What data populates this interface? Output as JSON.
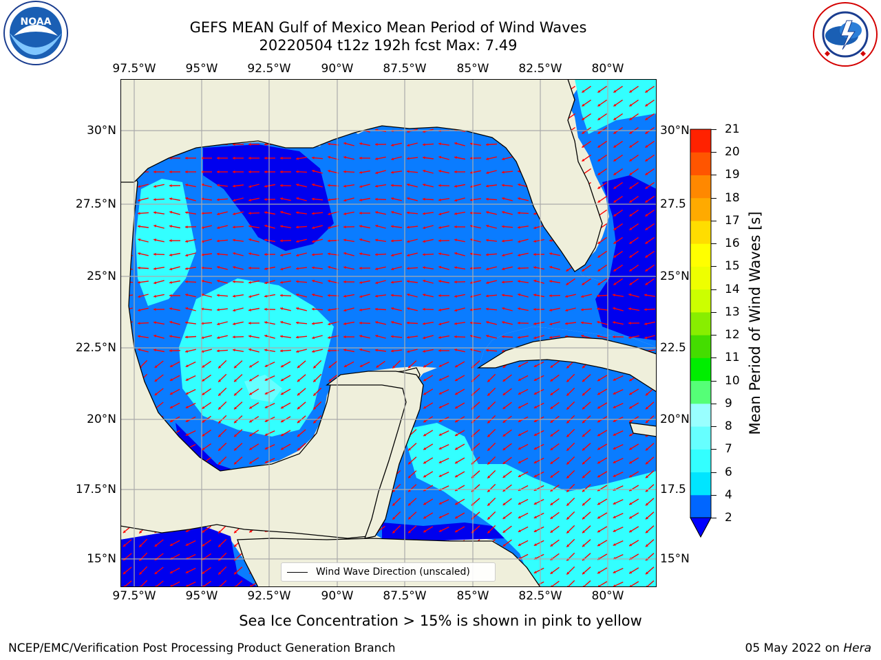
{
  "title": {
    "line1": "GEFS MEAN Gulf of Mexico Mean Period of Wind Waves",
    "line2": "20220504 t12z 192h fcst   Max: 7.49"
  },
  "axes": {
    "x_ticks": [
      "97.5°W",
      "95°W",
      "92.5°W",
      "90°W",
      "87.5°W",
      "85°W",
      "82.5°W",
      "80°W"
    ],
    "y_ticks_left": [
      "30°N",
      "27.5°N",
      "25°N",
      "22.5°N",
      "20°N",
      "17.5°N",
      "15°N"
    ],
    "y_ticks_right": [
      "30°N",
      "27.5",
      "25°N",
      "22.5",
      "20°N",
      "17.5",
      "15°N"
    ],
    "lon_range": [
      -98,
      -78.2
    ],
    "lat_range": [
      14,
      31.6
    ]
  },
  "legend": {
    "label": "Wind Wave Direction (unscaled)"
  },
  "colorbar": {
    "label": "Mean Period of Wind Waves [s]",
    "ticks": [
      "2",
      "4",
      "6",
      "7",
      "8",
      "9",
      "10",
      "11",
      "12",
      "13",
      "14",
      "15",
      "16",
      "17",
      "18",
      "19",
      "20",
      "21"
    ],
    "colors": [
      "#0066ff",
      "#00e5ff",
      "#33ffff",
      "#66ffff",
      "#99ffff",
      "#55ff77",
      "#00ee00",
      "#44dd00",
      "#88ee00",
      "#ccff00",
      "#eeff00",
      "#ffff00",
      "#ffdd00",
      "#ffaa00",
      "#ff8800",
      "#ff5500",
      "#ff2200",
      "#ff0000"
    ],
    "under_color": "#0000ff"
  },
  "colors": {
    "land": "#efefdb",
    "arrow": "#ff0000",
    "grid": "#aaaaaa",
    "period_lt2": "#0000ee",
    "period_2_4": "#0a7cff",
    "period_4_6": "#33ffff",
    "period_6_7": "#66ffff"
  },
  "footer": {
    "note": "Sea Ice Concentration > 15% is shown in pink to yellow",
    "left": "NCEP/EMC/Verification Post Processing Product Generation Branch",
    "right_date": "05 May 2022 on ",
    "right_machine": "Hera"
  },
  "logos": {
    "noaa": "NOAA",
    "nws_text": "NATIONAL WEATHER SERVICE"
  }
}
